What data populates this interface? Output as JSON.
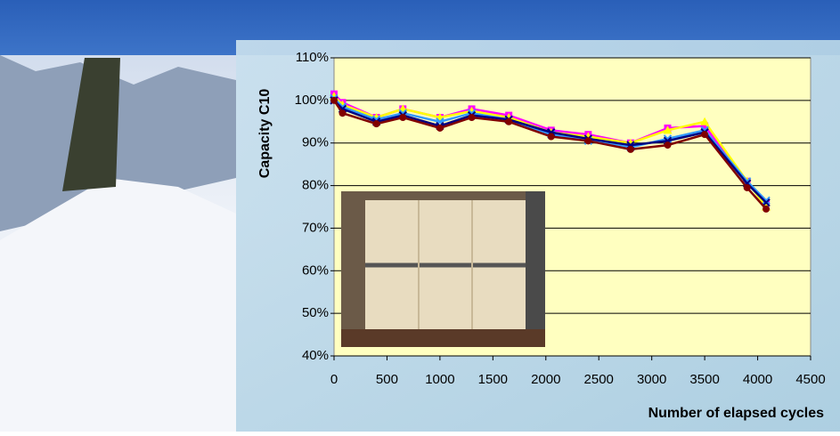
{
  "chart_data": {
    "type": "line",
    "y_label": "Capacity  C10",
    "x_label": "Number of elapsed cycles",
    "x": [
      0,
      80,
      400,
      650,
      1000,
      1300,
      1650,
      2050,
      2400,
      2800,
      3150,
      3500,
      3900,
      4080
    ],
    "series": [
      {
        "color": "#ff00ff",
        "marker": "square",
        "values": [
          101.5,
          99.5,
          96,
          98,
          96,
          98,
          96.5,
          93,
          92,
          90,
          93.5,
          94,
          81,
          76
        ]
      },
      {
        "color": "#ffff00",
        "marker": "triangle",
        "values": [
          101,
          99,
          96,
          98,
          96,
          97.5,
          96,
          92.5,
          91.5,
          90,
          93,
          95,
          81,
          75
        ]
      },
      {
        "color": "#3399ff",
        "marker": "x",
        "values": [
          100.5,
          98.5,
          95.5,
          97,
          95,
          97,
          95.5,
          92,
          90.5,
          89,
          91,
          93,
          81,
          76.5
        ]
      },
      {
        "color": "#000080",
        "marker": "x",
        "values": [
          100,
          98,
          95,
          96.5,
          94,
          96.5,
          95.5,
          92.5,
          91,
          89.5,
          90.5,
          92.5,
          80.5,
          76
        ]
      },
      {
        "color": "#800000",
        "marker": "circle",
        "values": [
          100,
          97,
          94.5,
          96,
          93.5,
          96,
          95,
          91.5,
          90.5,
          88.5,
          89.5,
          92,
          79.5,
          74.5
        ]
      }
    ],
    "xlim": [
      0,
      4500
    ],
    "xticks": [
      0,
      500,
      1000,
      1500,
      2000,
      2500,
      3000,
      3500,
      4000,
      4500
    ],
    "ylim": [
      40,
      110
    ],
    "yticks": [
      {
        "value": 40,
        "label": "40%"
      },
      {
        "value": 50,
        "label": "50%"
      },
      {
        "value": 60,
        "label": "60%"
      },
      {
        "value": 70,
        "label": "70%"
      },
      {
        "value": 80,
        "label": "80%"
      },
      {
        "value": 90,
        "label": "90%"
      },
      {
        "value": 100,
        "label": "100%"
      },
      {
        "value": 110,
        "label": "110%"
      }
    ],
    "grid": true,
    "plot_color": "#ffffc0"
  }
}
